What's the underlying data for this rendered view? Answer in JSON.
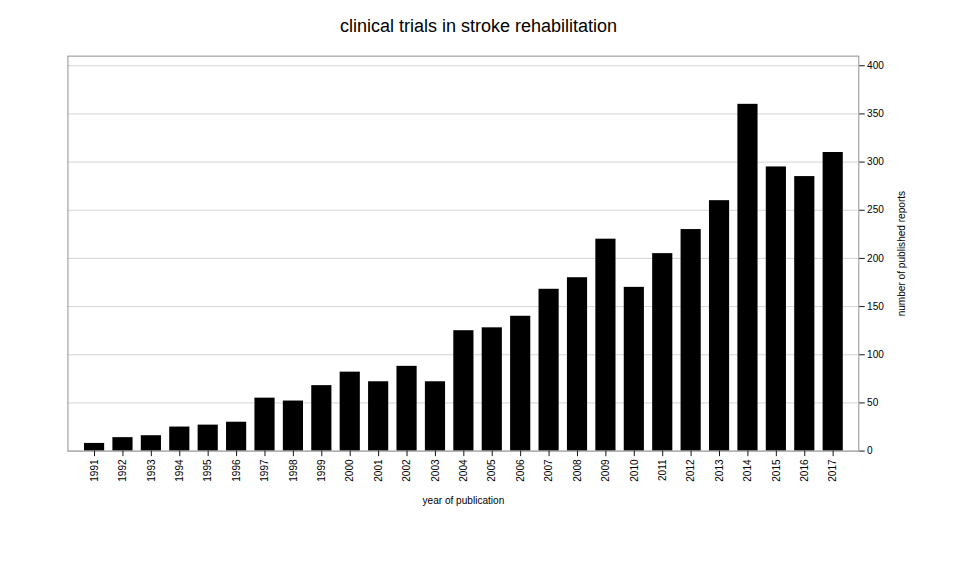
{
  "chart_data": {
    "type": "bar",
    "title": "clinical trials in stroke rehabilitation",
    "xlabel": "year of publication",
    "ylabel": "number of published reports",
    "categories": [
      "1991",
      "1992",
      "1993",
      "1994",
      "1995",
      "1996",
      "1997",
      "1998",
      "1999",
      "2000",
      "2001",
      "2002",
      "2003",
      "2004",
      "2005",
      "2006",
      "2007",
      "2008",
      "2009",
      "2010",
      "2011",
      "2012",
      "2013",
      "2014",
      "2015",
      "2016",
      "2017"
    ],
    "values": [
      8,
      14,
      16,
      25,
      27,
      30,
      55,
      52,
      68,
      82,
      72,
      88,
      72,
      125,
      128,
      140,
      168,
      180,
      220,
      170,
      205,
      230,
      260,
      360,
      295,
      285,
      310
    ],
    "color": "#000000",
    "ylim": [
      0,
      410
    ],
    "yticks": [
      0,
      50,
      100,
      150,
      200,
      250,
      300,
      350,
      400
    ],
    "grid": true
  }
}
